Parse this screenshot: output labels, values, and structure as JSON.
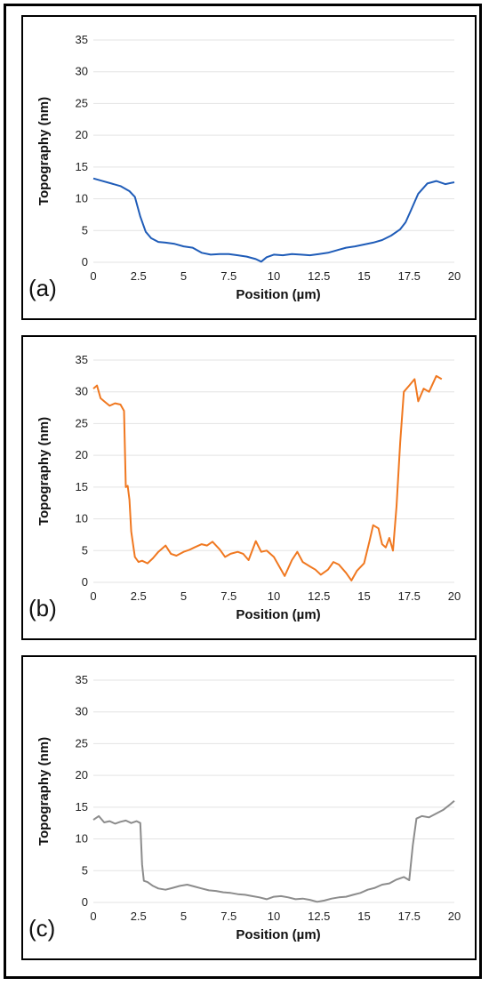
{
  "chart_data": [
    {
      "type": "line",
      "panel_label": "(a)",
      "xlabel": "Position (µm)",
      "ylabel": "Topography (nm)",
      "xlim": [
        0,
        20
      ],
      "ylim": [
        0,
        35
      ],
      "xticks": [
        "0",
        "2.5",
        "5",
        "7.5",
        "10",
        "12.5",
        "15",
        "17.5",
        "20"
      ],
      "yticks": [
        "0",
        "5",
        "10",
        "15",
        "20",
        "25",
        "30",
        "35"
      ],
      "grid": "horizontal",
      "color": "#1f5cb8",
      "x": [
        0,
        0.5,
        1,
        1.5,
        2,
        2.3,
        2.6,
        2.9,
        3.2,
        3.6,
        4,
        4.5,
        5,
        5.5,
        6,
        6.5,
        7,
        7.5,
        8,
        8.5,
        9,
        9.3,
        9.6,
        10,
        10.5,
        11,
        11.5,
        12,
        12.5,
        13,
        13.5,
        14,
        14.5,
        15,
        15.5,
        16,
        16.5,
        17,
        17.3,
        17.6,
        18,
        18.5,
        19,
        19.5,
        20
      ],
      "y": [
        13.2,
        12.8,
        12.4,
        12.0,
        11.2,
        10.3,
        7.2,
        4.8,
        3.8,
        3.2,
        3.1,
        2.9,
        2.5,
        2.3,
        1.5,
        1.2,
        1.3,
        1.3,
        1.1,
        0.9,
        0.5,
        0.1,
        0.8,
        1.2,
        1.1,
        1.3,
        1.2,
        1.1,
        1.3,
        1.5,
        1.9,
        2.3,
        2.5,
        2.8,
        3.1,
        3.5,
        4.2,
        5.2,
        6.3,
        8.2,
        10.8,
        12.4,
        12.8,
        12.3,
        12.6
      ]
    },
    {
      "type": "line",
      "panel_label": "(b)",
      "xlabel": "Position (µm)",
      "ylabel": "Topography (nm)",
      "xlim": [
        0,
        20
      ],
      "ylim": [
        0,
        35
      ],
      "xticks": [
        "0",
        "2.5",
        "5",
        "7.5",
        "10",
        "12.5",
        "15",
        "17.5",
        "20"
      ],
      "yticks": [
        "0",
        "5",
        "10",
        "15",
        "20",
        "25",
        "30",
        "35"
      ],
      "grid": "horizontal",
      "color": "#f07820",
      "x": [
        0,
        0.2,
        0.4,
        0.6,
        0.9,
        1.2,
        1.5,
        1.7,
        1.8,
        1.9,
        2.0,
        2.1,
        2.3,
        2.5,
        2.7,
        3.0,
        3.3,
        3.6,
        4.0,
        4.3,
        4.6,
        5.0,
        5.3,
        5.6,
        6.0,
        6.3,
        6.6,
        7.0,
        7.3,
        7.6,
        8.0,
        8.3,
        8.6,
        9.0,
        9.3,
        9.6,
        10.0,
        10.3,
        10.6,
        11.0,
        11.3,
        11.6,
        12.0,
        12.3,
        12.6,
        13.0,
        13.3,
        13.6,
        14.0,
        14.3,
        14.6,
        15.0,
        15.3,
        15.5,
        15.8,
        16.0,
        16.2,
        16.4,
        16.6,
        16.8,
        17.0,
        17.2,
        17.5,
        17.8,
        18.0,
        18.3,
        18.6,
        19.0,
        19.3
      ],
      "y": [
        30.5,
        31.0,
        29.0,
        28.5,
        27.8,
        28.2,
        28.0,
        27.0,
        15.0,
        15.2,
        13.0,
        8.0,
        4.0,
        3.2,
        3.4,
        3.0,
        3.8,
        4.8,
        5.8,
        4.5,
        4.2,
        4.8,
        5.1,
        5.5,
        6.0,
        5.8,
        6.4,
        5.2,
        4.0,
        4.5,
        4.8,
        4.5,
        3.5,
        6.5,
        4.8,
        5.0,
        4.0,
        2.5,
        1.0,
        3.5,
        4.8,
        3.2,
        2.5,
        2.0,
        1.2,
        2.0,
        3.2,
        2.8,
        1.5,
        0.3,
        1.8,
        3.0,
        6.5,
        9.0,
        8.5,
        6.0,
        5.5,
        7.0,
        5.0,
        12.0,
        22.0,
        30.0,
        31.0,
        32.0,
        28.5,
        30.5,
        30.0,
        32.5,
        32.0
      ]
    },
    {
      "type": "line",
      "panel_label": "(c)",
      "xlabel": "Position (µm)",
      "ylabel": "Topography (nm)",
      "xlim": [
        0,
        20
      ],
      "ylim": [
        0,
        35
      ],
      "xticks": [
        "0",
        "2.5",
        "5",
        "7.5",
        "10",
        "12.5",
        "15",
        "17.5",
        "20"
      ],
      "yticks": [
        "0",
        "5",
        "10",
        "15",
        "20",
        "25",
        "30",
        "35"
      ],
      "grid": "horizontal",
      "color": "#8c8c8c",
      "x": [
        0,
        0.3,
        0.6,
        0.9,
        1.2,
        1.5,
        1.8,
        2.1,
        2.4,
        2.6,
        2.7,
        2.8,
        3.0,
        3.3,
        3.6,
        4.0,
        4.4,
        4.8,
        5.2,
        5.6,
        6.0,
        6.4,
        6.8,
        7.2,
        7.6,
        8.0,
        8.4,
        8.8,
        9.2,
        9.6,
        10.0,
        10.4,
        10.8,
        11.2,
        11.6,
        12.0,
        12.4,
        12.8,
        13.2,
        13.6,
        14.0,
        14.4,
        14.8,
        15.2,
        15.6,
        16.0,
        16.4,
        16.8,
        17.2,
        17.5,
        17.7,
        17.9,
        18.2,
        18.6,
        19.0,
        19.4,
        19.8,
        20.0
      ],
      "y": [
        13.0,
        13.6,
        12.6,
        12.8,
        12.4,
        12.7,
        12.9,
        12.5,
        12.8,
        12.5,
        6.0,
        3.4,
        3.2,
        2.6,
        2.2,
        2.0,
        2.3,
        2.6,
        2.8,
        2.5,
        2.2,
        1.9,
        1.8,
        1.6,
        1.5,
        1.3,
        1.2,
        1.0,
        0.8,
        0.5,
        0.9,
        1.0,
        0.8,
        0.5,
        0.6,
        0.4,
        0.1,
        0.3,
        0.6,
        0.8,
        0.9,
        1.2,
        1.5,
        2.0,
        2.3,
        2.8,
        3.0,
        3.6,
        4.0,
        3.5,
        9.0,
        13.2,
        13.6,
        13.4,
        14.0,
        14.6,
        15.5,
        16.0
      ]
    }
  ]
}
